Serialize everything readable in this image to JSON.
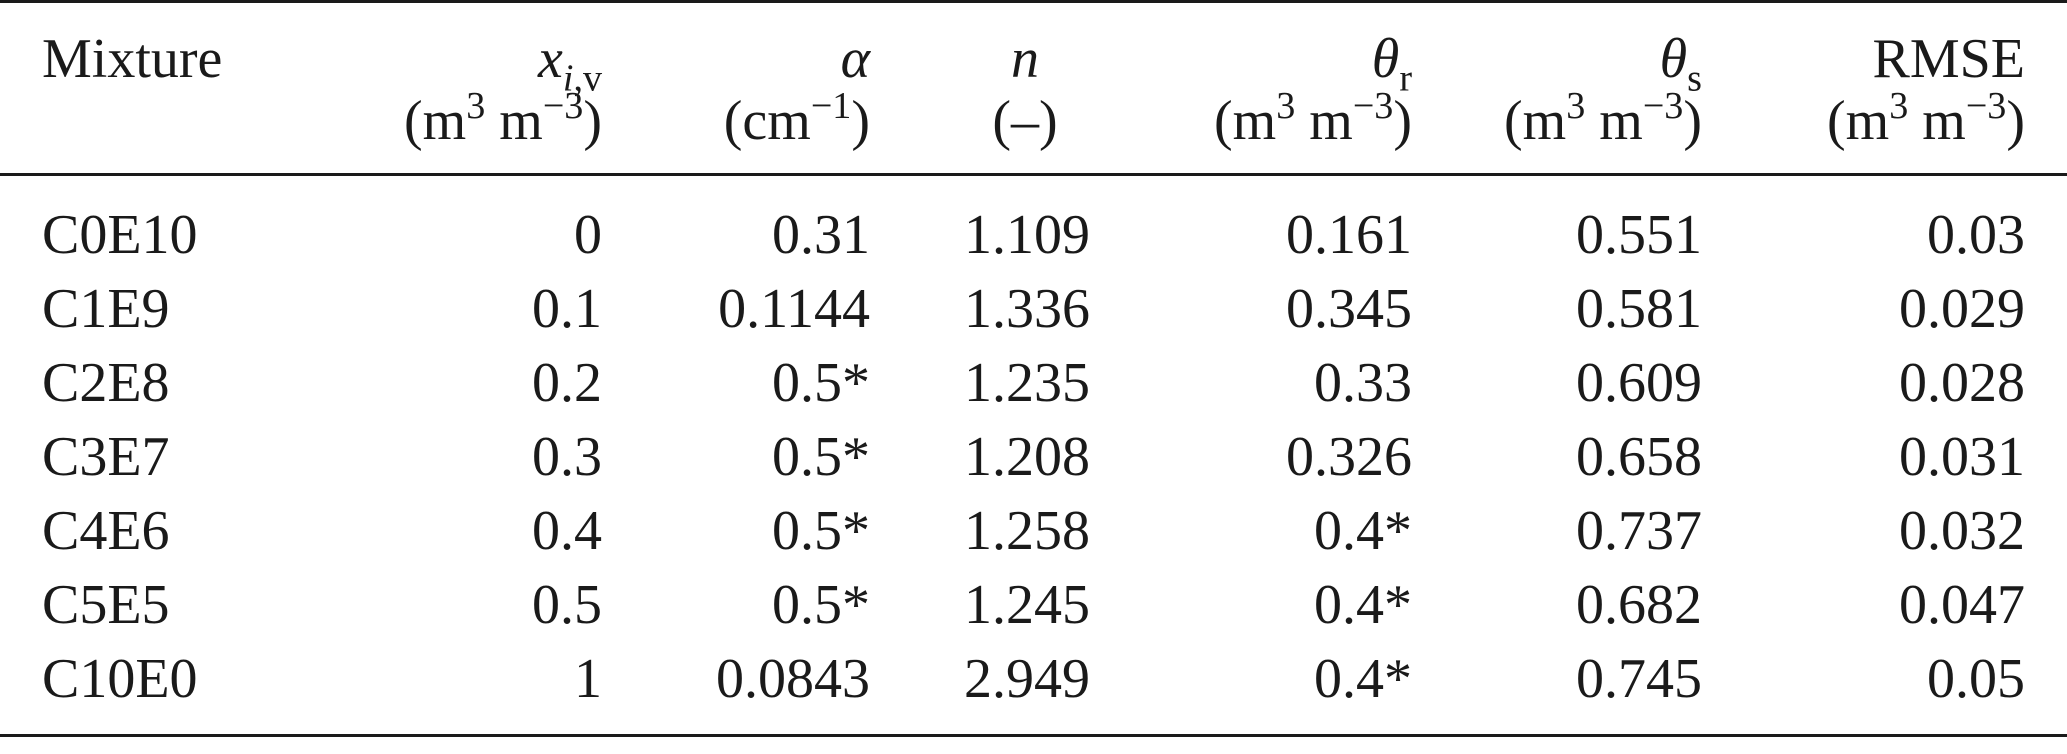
{
  "table": {
    "headers": [
      {
        "id": "mixture",
        "line1": "Mixture",
        "line2": ""
      },
      {
        "id": "xiv",
        "symbol": "x",
        "sub": "i",
        "sub_rest": ",v",
        "unit_pre": "(m",
        "unit_sup1": "3",
        "unit_mid": " m",
        "unit_sup2": "−3",
        "unit_post": ")"
      },
      {
        "id": "alpha",
        "symbol": "α",
        "unit_pre": "(cm",
        "unit_sup": "−1",
        "unit_post": ")"
      },
      {
        "id": "n",
        "symbol": "n",
        "unit": "(–)"
      },
      {
        "id": "theta_r",
        "symbol": "θ",
        "sub": "r",
        "unit_pre": "(m",
        "unit_sup1": "3",
        "unit_mid": " m",
        "unit_sup2": "−3",
        "unit_post": ")"
      },
      {
        "id": "theta_s",
        "symbol": "θ",
        "sub": "s",
        "unit_pre": "(m",
        "unit_sup1": "3",
        "unit_mid": " m",
        "unit_sup2": "−3",
        "unit_post": ")"
      },
      {
        "id": "rmse",
        "symbol": "RMSE",
        "unit_pre": "(m",
        "unit_sup1": "3",
        "unit_mid": " m",
        "unit_sup2": "−3",
        "unit_post": ")"
      }
    ],
    "rows": [
      {
        "mixture": "C0E10",
        "xiv": "0",
        "alpha": "0.31",
        "n": "1.109",
        "theta_r": "0.161",
        "theta_s": "0.551",
        "rmse": "0.03"
      },
      {
        "mixture": "C1E9",
        "xiv": "0.1",
        "alpha": "0.1144",
        "n": "1.336",
        "theta_r": "0.345",
        "theta_s": "0.581",
        "rmse": "0.029"
      },
      {
        "mixture": "C2E8",
        "xiv": "0.2",
        "alpha": "0.5*",
        "n": "1.235",
        "theta_r": "0.33",
        "theta_s": "0.609",
        "rmse": "0.028"
      },
      {
        "mixture": "C3E7",
        "xiv": "0.3",
        "alpha": "0.5*",
        "n": "1.208",
        "theta_r": "0.326",
        "theta_s": "0.658",
        "rmse": "0.031"
      },
      {
        "mixture": "C4E6",
        "xiv": "0.4",
        "alpha": "0.5*",
        "n": "1.258",
        "theta_r": "0.4*",
        "theta_s": "0.737",
        "rmse": "0.032"
      },
      {
        "mixture": "C5E5",
        "xiv": "0.5",
        "alpha": "0.5*",
        "n": "1.245",
        "theta_r": "0.4*",
        "theta_s": "0.682",
        "rmse": "0.047"
      },
      {
        "mixture": "C10E0",
        "xiv": "1",
        "alpha": "0.0843",
        "n": "2.949",
        "theta_r": "0.4*",
        "theta_s": "0.745",
        "rmse": "0.05"
      }
    ]
  }
}
